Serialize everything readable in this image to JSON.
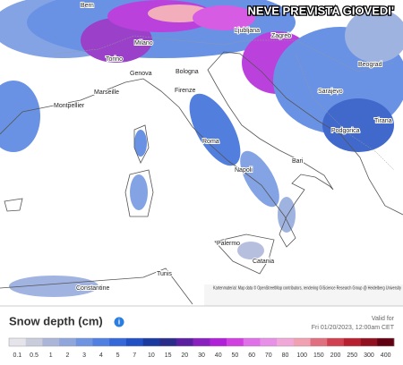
{
  "map": {
    "title": "NEVE PREVISTA GIOVEDI'",
    "places": [
      "Bern",
      "Ljubljana",
      "Zagreb",
      "Beograd",
      "Torino",
      "Milano",
      "Genova",
      "Bologna",
      "Firenze",
      "Marseille",
      "Montpellier",
      "Sarajevo",
      "Podgorica",
      "Tirana",
      "Roma",
      "Napoli",
      "Bari",
      "Palermo",
      "Catania",
      "Constantine",
      "Tunis"
    ],
    "attribution": "Kartenmaterial: Map data © OpenStreetMap contributors, rendering GIScience Research Group @ Heidelberg University"
  },
  "legend": {
    "title": "Snow depth (cm)",
    "stops": [
      {
        "label": 0.1,
        "color": "#e4e4ea"
      },
      {
        "label": 0.5,
        "color": "#c9ccda"
      },
      {
        "label": 1,
        "color": "#aab5d8"
      },
      {
        "label": 2,
        "color": "#8fa6dc"
      },
      {
        "label": 3,
        "color": "#6e93e0"
      },
      {
        "label": 4,
        "color": "#4f7fe0"
      },
      {
        "label": 5,
        "color": "#3468d8"
      },
      {
        "label": 7,
        "color": "#2150c4"
      },
      {
        "label": 10,
        "color": "#1a3aa0"
      },
      {
        "label": 15,
        "color": "#2a2c8a"
      },
      {
        "label": 20,
        "color": "#5a1fa0"
      },
      {
        "label": 30,
        "color": "#8a1fc0"
      },
      {
        "label": 40,
        "color": "#b020d8"
      },
      {
        "label": 50,
        "color": "#d040e0"
      },
      {
        "label": 60,
        "color": "#e070e8"
      },
      {
        "label": 70,
        "color": "#e890e8"
      },
      {
        "label": 80,
        "color": "#f0a8d8"
      },
      {
        "label": 100,
        "color": "#f0a0b0"
      },
      {
        "label": 150,
        "color": "#e07080"
      },
      {
        "label": 200,
        "color": "#d04050"
      },
      {
        "label": 250,
        "color": "#b82030"
      },
      {
        "label": 300,
        "color": "#901020"
      },
      {
        "label": 400,
        "color": "#600010"
      }
    ]
  },
  "valid": {
    "label": "Valid for",
    "time": "Fri 01/20/2023, 12:00am CET"
  }
}
